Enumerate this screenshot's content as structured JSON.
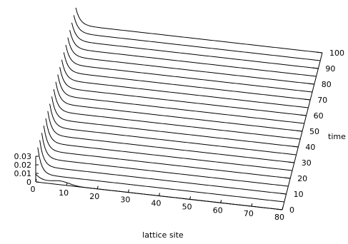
{
  "chart_data": {
    "type": "line",
    "title": "",
    "xlabel": "lattice site",
    "ylabel": "",
    "zlabel": "time",
    "x_ticks": [
      0,
      10,
      20,
      30,
      40,
      50,
      60,
      70,
      80
    ],
    "z_ticks": [
      0,
      10,
      20,
      30,
      40,
      50,
      60,
      70,
      80,
      90,
      100
    ],
    "y_ticks": [
      "0",
      "0.01",
      "0.02",
      "0.03"
    ],
    "xlim": [
      0,
      80
    ],
    "zlim": [
      0,
      100
    ],
    "ylim": [
      0,
      0.03
    ],
    "time_slices": [
      0,
      5,
      10,
      15,
      20,
      25,
      30,
      35,
      40,
      45,
      50,
      55,
      60,
      65,
      70,
      75,
      80,
      85,
      90,
      95,
      100
    ],
    "profile_note_peak_site": 0
  }
}
